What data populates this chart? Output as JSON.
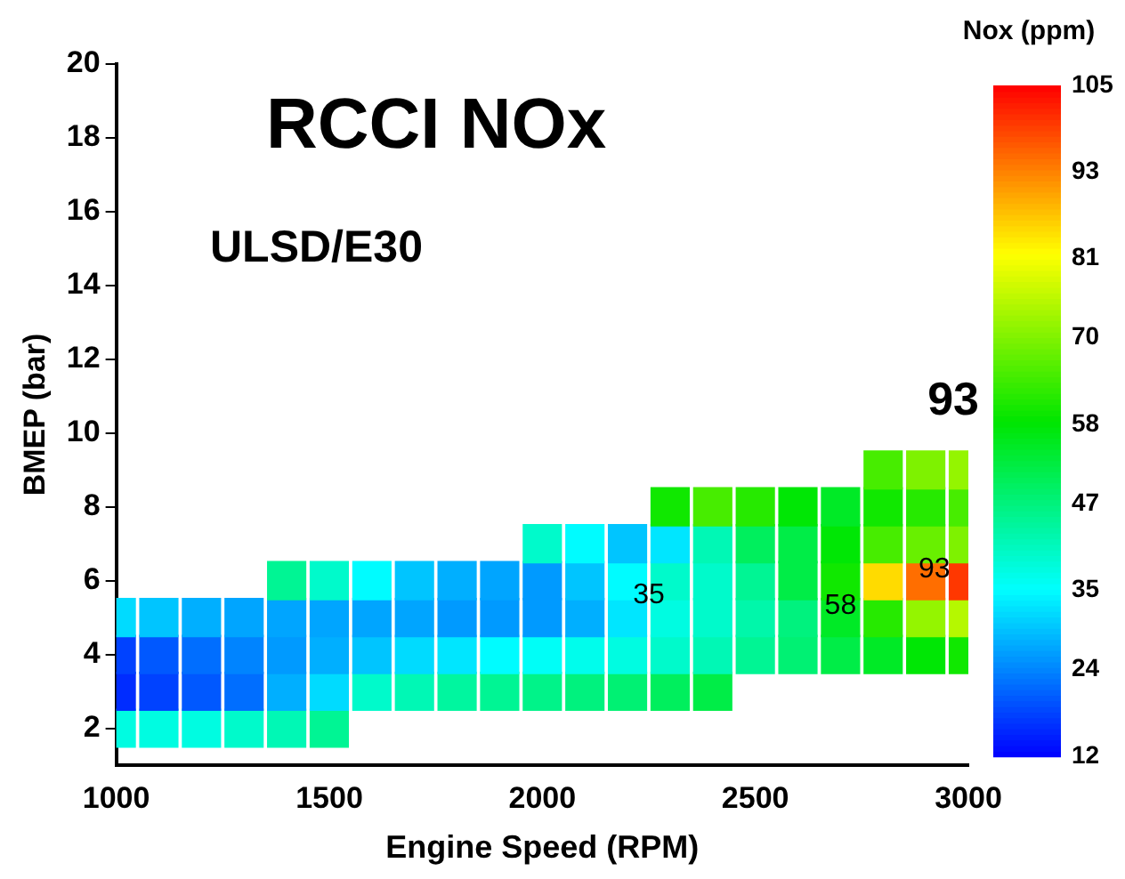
{
  "chart_data": {
    "type": "scatter",
    "title": "RCCI NOx",
    "subtitle": "ULSD/E30",
    "xlabel": "Engine Speed (RPM)",
    "ylabel": "BMEP (bar)",
    "clabel": "Nox (ppm)",
    "x": [
      1000,
      1100,
      1200,
      1300,
      1400,
      1500,
      1000,
      1100,
      1200,
      1300,
      1400,
      1500,
      1600,
      1700,
      1800,
      1900,
      2000,
      2100,
      2200,
      2300,
      2400,
      1000,
      1100,
      1200,
      1300,
      1400,
      1500,
      1600,
      1700,
      1800,
      1900,
      2000,
      2100,
      2200,
      2300,
      2400,
      2500,
      2600,
      2700,
      2800,
      2900,
      3000,
      1000,
      1100,
      1200,
      1300,
      1400,
      1500,
      1600,
      1700,
      1800,
      1900,
      2000,
      2100,
      2200,
      2300,
      2400,
      2500,
      2600,
      2700,
      2800,
      2900,
      3000,
      1400,
      1500,
      1600,
      1700,
      1800,
      1900,
      2000,
      2100,
      2200,
      2300,
      2400,
      2500,
      2600,
      2700,
      2800,
      2900,
      3000,
      2000,
      2100,
      2200,
      2300,
      2400,
      2500,
      2600,
      2700,
      2800,
      2900,
      3000,
      2300,
      2400,
      2500,
      2600,
      2700,
      2800,
      2900,
      3000,
      2800,
      2900,
      3000
    ],
    "values": [
      2,
      2,
      2,
      2,
      2,
      2,
      3,
      3,
      3,
      3,
      3,
      3,
      3,
      3,
      3,
      3,
      3,
      3,
      3,
      3,
      3,
      4,
      4,
      4,
      4,
      4,
      4,
      4,
      4,
      4,
      4,
      4,
      4,
      4,
      4,
      4,
      4,
      4,
      4,
      4,
      4,
      4,
      5,
      5,
      5,
      5,
      5,
      5,
      5,
      5,
      5,
      5,
      5,
      5,
      5,
      5,
      5,
      5,
      5,
      5,
      5,
      5,
      5,
      6,
      6,
      6,
      6,
      6,
      6,
      6,
      6,
      6,
      6,
      6,
      6,
      6,
      6,
      6,
      6,
      6,
      7,
      7,
      7,
      7,
      7,
      7,
      7,
      7,
      7,
      7,
      7,
      8,
      8,
      8,
      8,
      8,
      8,
      8,
      8,
      9,
      9,
      9
    ],
    "cvalues": [
      38,
      38,
      38,
      40,
      42,
      45,
      16,
      18,
      20,
      22,
      28,
      32,
      40,
      42,
      44,
      45,
      46,
      47,
      48,
      50,
      52,
      18,
      20,
      22,
      24,
      26,
      28,
      30,
      32,
      33,
      35,
      36,
      37,
      38,
      40,
      42,
      45,
      48,
      52,
      55,
      58,
      60,
      32,
      30,
      28,
      27,
      27,
      27,
      27,
      27,
      26,
      26,
      26,
      28,
      33,
      38,
      40,
      43,
      47,
      55,
      62,
      72,
      75,
      45,
      40,
      35,
      30,
      28,
      27,
      26,
      30,
      35,
      40,
      40,
      45,
      52,
      60,
      85,
      95,
      100,
      40,
      35,
      30,
      33,
      42,
      50,
      52,
      58,
      65,
      68,
      70,
      60,
      65,
      62,
      58,
      55,
      60,
      62,
      65,
      65,
      70,
      72
    ],
    "marker": "square",
    "xlim": [
      1000,
      3000
    ],
    "xticks": [
      1000,
      1500,
      2000,
      2500,
      3000
    ],
    "ylim": [
      1,
      20
    ],
    "yticks": [
      2,
      4,
      6,
      8,
      10,
      12,
      14,
      16,
      18,
      20
    ],
    "clim": [
      12,
      105
    ],
    "cticks": [
      12,
      24,
      35,
      47,
      58,
      70,
      81,
      93,
      105
    ],
    "grid": false,
    "legend": false,
    "annotations": [
      "93",
      {
        "text": "35",
        "x": 2250,
        "y": 5.6
      },
      {
        "text": "58",
        "x": 2700,
        "y": 5.3
      },
      {
        "text": "93",
        "x": 2920,
        "y": 6.3
      }
    ]
  }
}
